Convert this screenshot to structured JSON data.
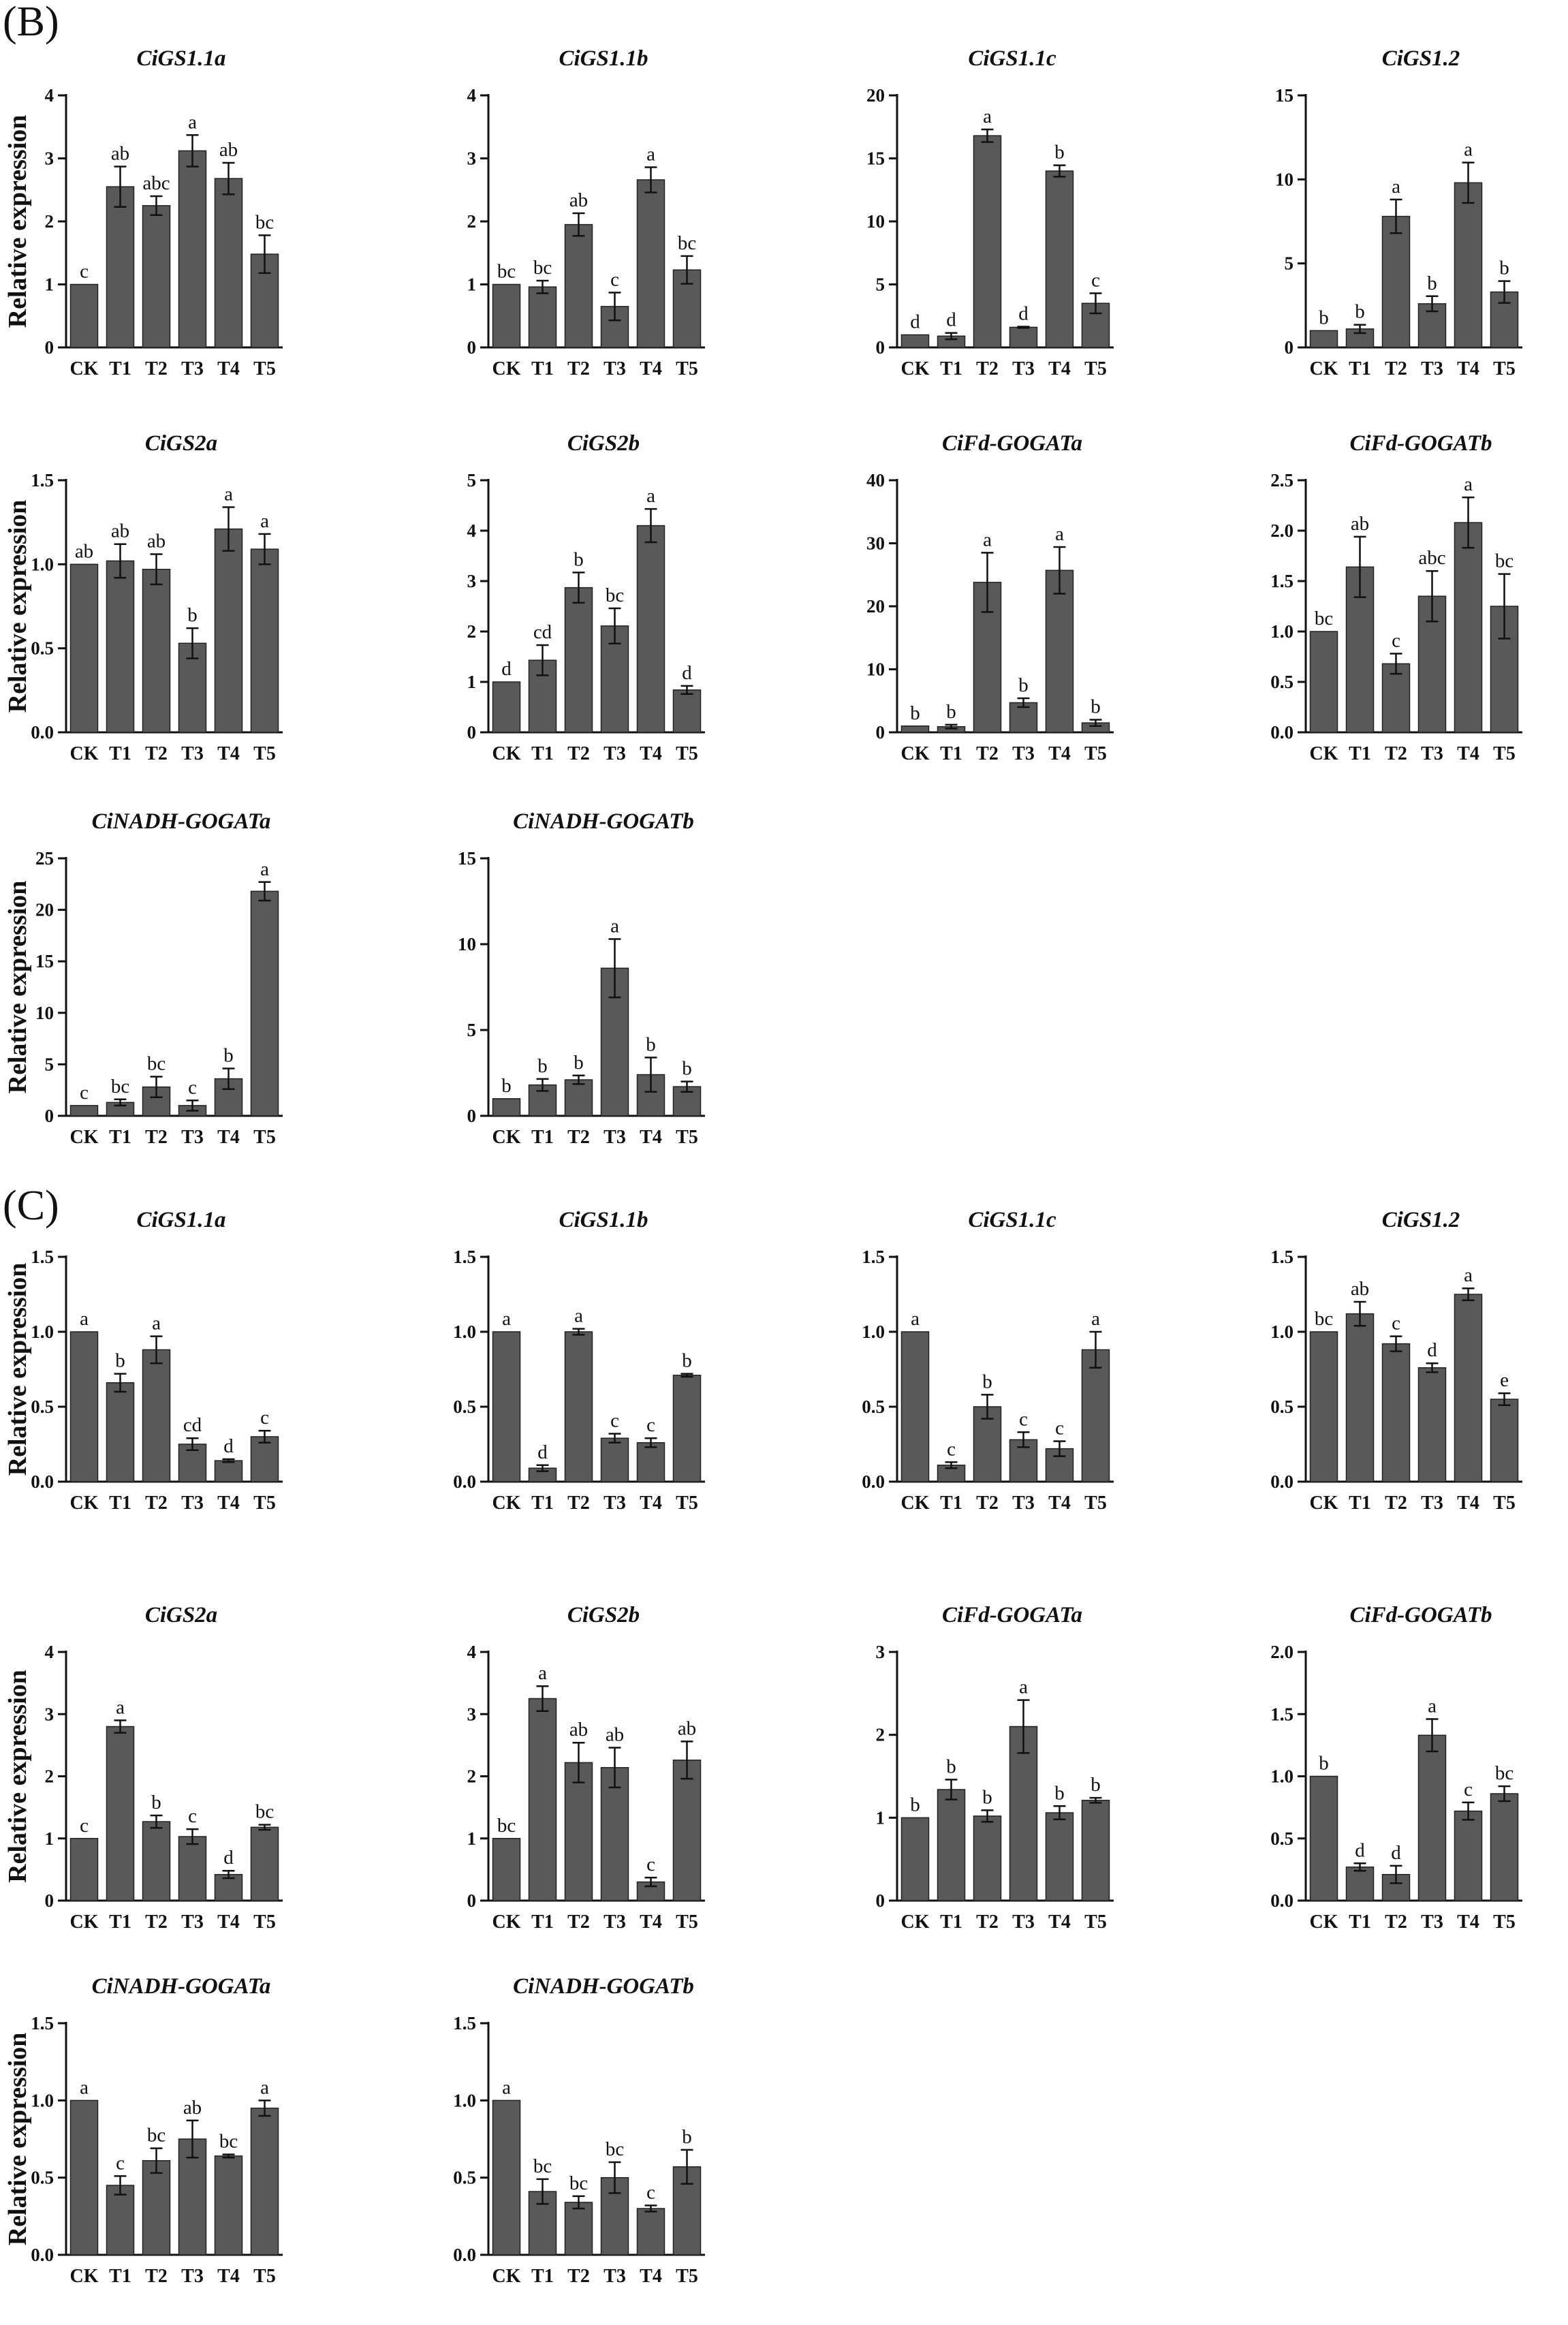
{
  "figure": {
    "panels": [
      {
        "label": "(B)",
        "ylabel": "Relative expression"
      },
      {
        "label": "(C)",
        "ylabel": "Relative expression"
      }
    ],
    "bar_color": "#595959"
  },
  "chart_data": [
    {
      "panel": "(B)",
      "type": "bar",
      "title": "CiGS1.1a",
      "categories": [
        "CK",
        "T1",
        "T2",
        "T3",
        "T4",
        "T5"
      ],
      "ylabel": "Relative expression",
      "yticks": [
        0,
        1,
        2,
        3,
        4
      ],
      "ylim": [
        0,
        4
      ],
      "values": [
        1.0,
        2.55,
        2.25,
        3.12,
        2.68,
        1.48
      ],
      "errors": [
        0,
        0.32,
        0.15,
        0.25,
        0.25,
        0.3
      ],
      "significance": [
        "c",
        "ab",
        "abc",
        "a",
        "ab",
        "bc"
      ]
    },
    {
      "panel": "(B)",
      "type": "bar",
      "title": "CiGS1.1b",
      "categories": [
        "CK",
        "T1",
        "T2",
        "T3",
        "T4",
        "T5"
      ],
      "ylabel": "",
      "yticks": [
        0,
        1,
        2,
        3,
        4
      ],
      "ylim": [
        0,
        4
      ],
      "values": [
        1.0,
        0.96,
        1.95,
        0.65,
        2.66,
        1.23
      ],
      "errors": [
        0,
        0.1,
        0.18,
        0.22,
        0.2,
        0.22
      ],
      "significance": [
        "bc",
        "bc",
        "ab",
        "c",
        "a",
        "bc"
      ]
    },
    {
      "panel": "(B)",
      "type": "bar",
      "title": "CiGS1.1c",
      "categories": [
        "CK",
        "T1",
        "T2",
        "T3",
        "T4",
        "T5"
      ],
      "ylabel": "",
      "yticks": [
        0,
        5,
        10,
        15,
        20
      ],
      "ylim": [
        0,
        20
      ],
      "values": [
        1.0,
        0.9,
        16.8,
        1.6,
        14.0,
        3.5
      ],
      "errors": [
        0,
        0.25,
        0.5,
        0.05,
        0.45,
        0.8
      ],
      "significance": [
        "d",
        "d",
        "a",
        "d",
        "b",
        "c"
      ]
    },
    {
      "panel": "(B)",
      "type": "bar",
      "title": "CiGS1.2",
      "categories": [
        "CK",
        "T1",
        "T2",
        "T3",
        "T4",
        "T5"
      ],
      "ylabel": "",
      "yticks": [
        0,
        5,
        10,
        15
      ],
      "ylim": [
        0,
        15
      ],
      "values": [
        1.0,
        1.1,
        7.8,
        2.6,
        9.8,
        3.3
      ],
      "errors": [
        0,
        0.25,
        1.0,
        0.45,
        1.2,
        0.65
      ],
      "significance": [
        "b",
        "b",
        "a",
        "b",
        "a",
        "b"
      ]
    },
    {
      "panel": "(B)",
      "type": "bar",
      "title": "CiGS2a",
      "categories": [
        "CK",
        "T1",
        "T2",
        "T3",
        "T4",
        "T5"
      ],
      "ylabel": "Relative expression",
      "yticks": [
        0.0,
        0.5,
        1.0,
        1.5
      ],
      "ylim": [
        0,
        1.5
      ],
      "values": [
        1.0,
        1.02,
        0.97,
        0.53,
        1.21,
        1.09
      ],
      "errors": [
        0,
        0.1,
        0.09,
        0.09,
        0.13,
        0.09
      ],
      "significance": [
        "ab",
        "ab",
        "ab",
        "b",
        "a",
        "a"
      ]
    },
    {
      "panel": "(B)",
      "type": "bar",
      "title": "CiGS2b",
      "categories": [
        "CK",
        "T1",
        "T2",
        "T3",
        "T4",
        "T5"
      ],
      "ylabel": "",
      "yticks": [
        0,
        1,
        2,
        3,
        4,
        5
      ],
      "ylim": [
        0,
        5
      ],
      "values": [
        1.0,
        1.43,
        2.87,
        2.11,
        4.1,
        0.84
      ],
      "errors": [
        0,
        0.3,
        0.3,
        0.35,
        0.33,
        0.08
      ],
      "significance": [
        "d",
        "cd",
        "b",
        "bc",
        "a",
        "d"
      ]
    },
    {
      "panel": "(B)",
      "type": "bar",
      "title": "CiFd-GOGATa",
      "categories": [
        "CK",
        "T1",
        "T2",
        "T3",
        "T4",
        "T5"
      ],
      "ylabel": "",
      "yticks": [
        0,
        10,
        20,
        30,
        40
      ],
      "ylim": [
        0,
        40
      ],
      "values": [
        1.0,
        0.9,
        23.8,
        4.7,
        25.7,
        1.5
      ],
      "errors": [
        0,
        0.3,
        4.7,
        0.7,
        3.7,
        0.5
      ],
      "significance": [
        "b",
        "b",
        "a",
        "b",
        "a",
        "b"
      ]
    },
    {
      "panel": "(B)",
      "type": "bar",
      "title": "CiFd-GOGATb",
      "categories": [
        "CK",
        "T1",
        "T2",
        "T3",
        "T4",
        "T5"
      ],
      "ylabel": "",
      "yticks": [
        0.0,
        0.5,
        1.0,
        1.5,
        2.0,
        2.5
      ],
      "ylim": [
        0,
        2.5
      ],
      "values": [
        1.0,
        1.64,
        0.68,
        1.35,
        2.08,
        1.25
      ],
      "errors": [
        0,
        0.3,
        0.1,
        0.25,
        0.25,
        0.32
      ],
      "significance": [
        "bc",
        "ab",
        "c",
        "abc",
        "a",
        "bc"
      ]
    },
    {
      "panel": "(B)",
      "type": "bar",
      "title": "CiNADH-GOGATa",
      "categories": [
        "CK",
        "T1",
        "T2",
        "T3",
        "T4",
        "T5"
      ],
      "ylabel": "Relative expression",
      "yticks": [
        0,
        5,
        10,
        15,
        20,
        25
      ],
      "ylim": [
        0,
        25
      ],
      "values": [
        1.0,
        1.3,
        2.8,
        1.0,
        3.6,
        21.8
      ],
      "errors": [
        0,
        0.3,
        1.0,
        0.5,
        1.0,
        0.9
      ],
      "significance": [
        "c",
        "bc",
        "bc",
        "c",
        "b",
        "a"
      ]
    },
    {
      "panel": "(B)",
      "type": "bar",
      "title": "CiNADH-GOGATb",
      "categories": [
        "CK",
        "T1",
        "T2",
        "T3",
        "T4",
        "T5"
      ],
      "ylabel": "",
      "yticks": [
        0,
        5,
        10,
        15
      ],
      "ylim": [
        0,
        15
      ],
      "values": [
        1.0,
        1.8,
        2.1,
        8.6,
        2.4,
        1.7
      ],
      "errors": [
        0,
        0.35,
        0.25,
        1.7,
        1.0,
        0.3
      ],
      "significance": [
        "b",
        "b",
        "b",
        "a",
        "b",
        "b"
      ]
    },
    {
      "panel": "(C)",
      "type": "bar",
      "title": "CiGS1.1a",
      "categories": [
        "CK",
        "T1",
        "T2",
        "T3",
        "T4",
        "T5"
      ],
      "ylabel": "Relative expression",
      "yticks": [
        0.0,
        0.5,
        1.0,
        1.5
      ],
      "ylim": [
        0,
        1.5
      ],
      "values": [
        1.0,
        0.66,
        0.88,
        0.25,
        0.14,
        0.3
      ],
      "errors": [
        0,
        0.06,
        0.09,
        0.04,
        0.01,
        0.04
      ],
      "significance": [
        "a",
        "b",
        "a",
        "cd",
        "d",
        "c"
      ]
    },
    {
      "panel": "(C)",
      "type": "bar",
      "title": "CiGS1.1b",
      "categories": [
        "CK",
        "T1",
        "T2",
        "T3",
        "T4",
        "T5"
      ],
      "ylabel": "",
      "yticks": [
        0.0,
        0.5,
        1.0,
        1.5
      ],
      "ylim": [
        0,
        1.5
      ],
      "values": [
        1.0,
        0.09,
        1.0,
        0.29,
        0.26,
        0.71
      ],
      "errors": [
        0,
        0.02,
        0.02,
        0.03,
        0.03,
        0.01
      ],
      "significance": [
        "a",
        "d",
        "a",
        "c",
        "c",
        "b"
      ]
    },
    {
      "panel": "(C)",
      "type": "bar",
      "title": "CiGS1.1c",
      "categories": [
        "CK",
        "T1",
        "T2",
        "T3",
        "T4",
        "T5"
      ],
      "ylabel": "",
      "yticks": [
        0.0,
        0.5,
        1.0,
        1.5
      ],
      "ylim": [
        0,
        1.5
      ],
      "values": [
        1.0,
        0.11,
        0.5,
        0.28,
        0.22,
        0.88
      ],
      "errors": [
        0,
        0.02,
        0.08,
        0.05,
        0.05,
        0.12
      ],
      "significance": [
        "a",
        "c",
        "b",
        "c",
        "c",
        "a"
      ]
    },
    {
      "panel": "(C)",
      "type": "bar",
      "title": "CiGS1.2",
      "categories": [
        "CK",
        "T1",
        "T2",
        "T3",
        "T4",
        "T5"
      ],
      "ylabel": "",
      "yticks": [
        0.0,
        0.5,
        1.0,
        1.5
      ],
      "ylim": [
        0,
        1.5
      ],
      "values": [
        1.0,
        1.12,
        0.92,
        0.76,
        1.25,
        0.55
      ],
      "errors": [
        0,
        0.08,
        0.05,
        0.03,
        0.04,
        0.04
      ],
      "significance": [
        "bc",
        "ab",
        "c",
        "d",
        "a",
        "e"
      ]
    },
    {
      "panel": "(C)",
      "type": "bar",
      "title": "CiGS2a",
      "categories": [
        "CK",
        "T1",
        "T2",
        "T3",
        "T4",
        "T5"
      ],
      "ylabel": "Relative expression",
      "yticks": [
        0,
        1,
        2,
        3,
        4
      ],
      "ylim": [
        0,
        4
      ],
      "values": [
        1.0,
        2.8,
        1.27,
        1.03,
        0.42,
        1.18
      ],
      "errors": [
        0,
        0.1,
        0.1,
        0.12,
        0.06,
        0.04
      ],
      "significance": [
        "c",
        "a",
        "b",
        "c",
        "d",
        "bc"
      ]
    },
    {
      "panel": "(C)",
      "type": "bar",
      "title": "CiGS2b",
      "categories": [
        "CK",
        "T1",
        "T2",
        "T3",
        "T4",
        "T5"
      ],
      "ylabel": "",
      "yticks": [
        0,
        1,
        2,
        3,
        4
      ],
      "ylim": [
        0,
        4
      ],
      "values": [
        1.0,
        3.25,
        2.22,
        2.14,
        0.3,
        2.26
      ],
      "errors": [
        0,
        0.2,
        0.32,
        0.32,
        0.07,
        0.3
      ],
      "significance": [
        "bc",
        "a",
        "ab",
        "ab",
        "c",
        "ab"
      ]
    },
    {
      "panel": "(C)",
      "type": "bar",
      "title": "CiFd-GOGATa",
      "categories": [
        "CK",
        "T1",
        "T2",
        "T3",
        "T4",
        "T5"
      ],
      "ylabel": "",
      "yticks": [
        0,
        1,
        2,
        3
      ],
      "ylim": [
        0,
        3
      ],
      "values": [
        1.0,
        1.34,
        1.02,
        2.1,
        1.06,
        1.21
      ],
      "errors": [
        0,
        0.12,
        0.07,
        0.32,
        0.08,
        0.03
      ],
      "significance": [
        "b",
        "b",
        "b",
        "a",
        "b",
        "b"
      ]
    },
    {
      "panel": "(C)",
      "type": "bar",
      "title": "CiFd-GOGATb",
      "categories": [
        "CK",
        "T1",
        "T2",
        "T3",
        "T4",
        "T5"
      ],
      "ylabel": "",
      "yticks": [
        0.0,
        0.5,
        1.0,
        1.5,
        2.0
      ],
      "ylim": [
        0,
        2.0
      ],
      "values": [
        1.0,
        0.27,
        0.21,
        1.33,
        0.72,
        0.86
      ],
      "errors": [
        0,
        0.03,
        0.07,
        0.13,
        0.07,
        0.06
      ],
      "significance": [
        "b",
        "d",
        "d",
        "a",
        "c",
        "bc"
      ]
    },
    {
      "panel": "(C)",
      "type": "bar",
      "title": "CiNADH-GOGATa",
      "categories": [
        "CK",
        "T1",
        "T2",
        "T3",
        "T4",
        "T5"
      ],
      "ylabel": "Relative expression",
      "yticks": [
        0.0,
        0.5,
        1.0,
        1.5
      ],
      "ylim": [
        0,
        1.5
      ],
      "values": [
        1.0,
        0.45,
        0.61,
        0.75,
        0.64,
        0.95
      ],
      "errors": [
        0,
        0.06,
        0.08,
        0.12,
        0.01,
        0.05
      ],
      "significance": [
        "a",
        "c",
        "bc",
        "ab",
        "bc",
        "a"
      ]
    },
    {
      "panel": "(C)",
      "type": "bar",
      "title": "CiNADH-GOGATb",
      "categories": [
        "CK",
        "T1",
        "T2",
        "T3",
        "T4",
        "T5"
      ],
      "ylabel": "",
      "yticks": [
        0.0,
        0.5,
        1.0,
        1.5
      ],
      "ylim": [
        0,
        1.5
      ],
      "values": [
        1.0,
        0.41,
        0.34,
        0.5,
        0.3,
        0.57
      ],
      "errors": [
        0,
        0.08,
        0.04,
        0.1,
        0.02,
        0.11
      ],
      "significance": [
        "a",
        "bc",
        "bc",
        "bc",
        "c",
        "b"
      ]
    }
  ]
}
